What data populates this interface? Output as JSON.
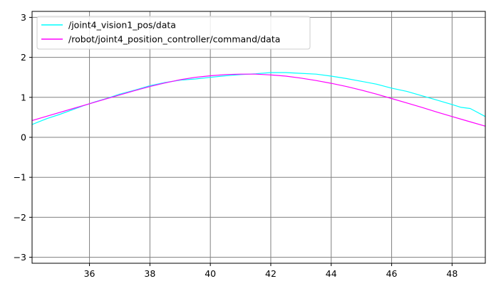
{
  "chart_data": {
    "type": "line",
    "title": "",
    "xlabel": "",
    "ylabel": "",
    "xlim": [
      34.1,
      49.1
    ],
    "ylim": [
      -3.15,
      3.15
    ],
    "xticks": [
      36,
      38,
      40,
      42,
      44,
      46,
      48
    ],
    "yticks": [
      -3,
      -2,
      -1,
      0,
      1,
      2,
      3
    ],
    "xtick_labels": [
      "36",
      "38",
      "40",
      "42",
      "44",
      "46",
      "48"
    ],
    "ytick_labels": [
      "−3",
      "−2",
      "−1",
      "0",
      "1",
      "2",
      "3"
    ],
    "grid": true,
    "grid_color": "#808080",
    "legend_position": "top-left",
    "series": [
      {
        "name": "/joint4_vision1_pos/data",
        "color": "#00ffff",
        "x": [
          34.1,
          34.3,
          34.6,
          35.0,
          35.4,
          35.8,
          36.2,
          36.6,
          37.0,
          37.5,
          38.0,
          38.5,
          39.0,
          39.5,
          40.0,
          40.5,
          41.0,
          41.5,
          42.0,
          42.5,
          43.0,
          43.5,
          44.0,
          44.5,
          45.0,
          45.5,
          46.0,
          46.5,
          47.0,
          47.5,
          48.0,
          48.3,
          48.6,
          48.8,
          49.1
        ],
        "y": [
          0.32,
          0.38,
          0.47,
          0.57,
          0.68,
          0.79,
          0.89,
          0.98,
          1.08,
          1.18,
          1.29,
          1.37,
          1.43,
          1.46,
          1.5,
          1.54,
          1.57,
          1.59,
          1.62,
          1.62,
          1.6,
          1.58,
          1.53,
          1.47,
          1.4,
          1.33,
          1.23,
          1.15,
          1.04,
          0.93,
          0.82,
          0.75,
          0.72,
          0.64,
          0.52
        ]
      },
      {
        "name": "/robot/joint4_position_controller/command/data",
        "color": "#ff00ff",
        "x": [
          34.1,
          34.6,
          35.0,
          35.5,
          36.0,
          36.5,
          37.0,
          37.5,
          38.0,
          38.5,
          39.0,
          39.5,
          40.0,
          40.5,
          41.0,
          41.5,
          42.0,
          42.5,
          43.0,
          43.5,
          44.0,
          44.5,
          45.0,
          45.5,
          46.0,
          46.5,
          47.0,
          47.5,
          48.0,
          48.5,
          49.1
        ],
        "y": [
          0.42,
          0.53,
          0.62,
          0.73,
          0.84,
          0.95,
          1.06,
          1.17,
          1.27,
          1.36,
          1.44,
          1.5,
          1.54,
          1.57,
          1.58,
          1.58,
          1.56,
          1.53,
          1.48,
          1.42,
          1.35,
          1.27,
          1.18,
          1.08,
          0.97,
          0.86,
          0.75,
          0.63,
          0.52,
          0.41,
          0.28
        ]
      }
    ]
  }
}
